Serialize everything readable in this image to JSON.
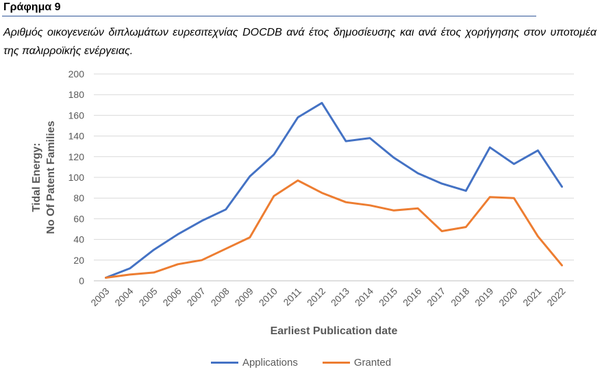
{
  "heading": "Γράφημα 9",
  "caption": "Αριθμός οικογενειών διπλωμάτων ευρεσιτεχνίας DOCDB ανά έτος δημοσίευσης και ανά έτος χορήγησης στον υποτομέα της παλιρροϊκής ενέργειας.",
  "chart_data": {
    "type": "line",
    "xlabel": "Earliest Publication date",
    "ylabel_lines": [
      "Tidal Energy:",
      "No Of Patent Families"
    ],
    "ylim": [
      0,
      200
    ],
    "yticks": [
      0,
      20,
      40,
      60,
      80,
      100,
      120,
      140,
      160,
      180,
      200
    ],
    "grid": true,
    "legend_position": "bottom",
    "categories": [
      "2003",
      "2004",
      "2005",
      "2006",
      "2007",
      "2008",
      "2009",
      "2010",
      "2011",
      "2012",
      "2013",
      "2014",
      "2015",
      "2016",
      "2017",
      "2018",
      "2019",
      "2020",
      "2021",
      "2022"
    ],
    "series": [
      {
        "name": "Applications",
        "color": "#4472c4",
        "values": [
          3,
          12,
          30,
          45,
          58,
          69,
          101,
          122,
          158,
          172,
          135,
          138,
          119,
          104,
          94,
          87,
          129,
          113,
          126,
          91
        ]
      },
      {
        "name": "Granted",
        "color": "#ed7d31",
        "values": [
          3,
          6,
          8,
          16,
          20,
          31,
          42,
          82,
          97,
          85,
          76,
          73,
          68,
          70,
          48,
          52,
          81,
          80,
          43,
          15
        ]
      }
    ]
  }
}
